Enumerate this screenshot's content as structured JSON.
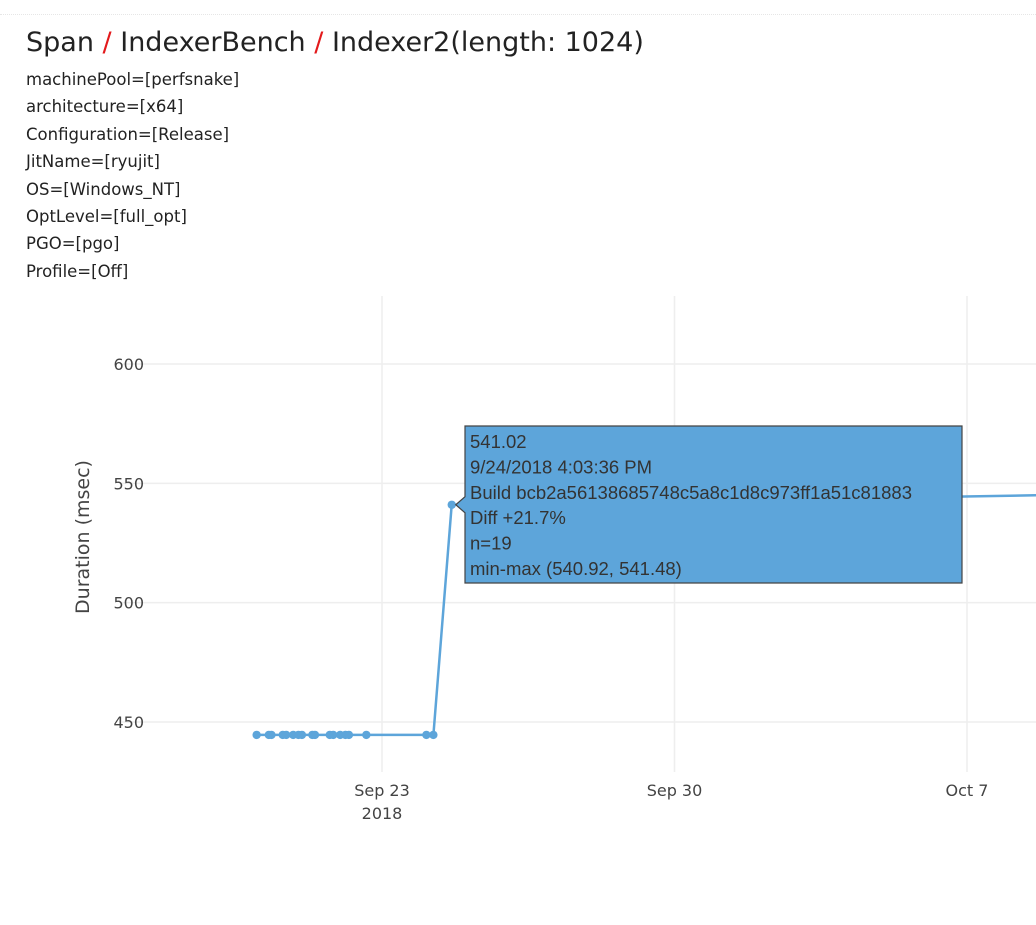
{
  "breadcrumb": {
    "items": [
      "Span",
      "IndexerBench",
      "Indexer2(length: 1024)"
    ],
    "separator": "/"
  },
  "metadata": [
    "machinePool=[perfsnake]",
    "architecture=[x64]",
    "Configuration=[Release]",
    "JitName=[ryujit]",
    "OS=[Windows_NT]",
    "OptLevel=[full_opt]",
    "PGO=[pgo]",
    "Profile=[Off]"
  ],
  "colors": {
    "series": "#5da5da",
    "tooltip_fill": "#5da5da",
    "tooltip_border": "#444444",
    "separator": "#e31a1c",
    "grid": "#eeeeee"
  },
  "chart_data": {
    "type": "line",
    "title": "",
    "ylabel": "Duration (msec)",
    "xlabel": "",
    "ylim": [
      422,
      623
    ],
    "xlim": [
      "2018-09-18T06:00:00",
      "2018-10-10T00:00:00"
    ],
    "yticks": [
      450,
      500,
      550,
      600
    ],
    "xticks": [
      {
        "date": "2018-09-23",
        "label": "Sep 23",
        "sublabel": "2018"
      },
      {
        "date": "2018-09-30",
        "label": "Sep 30",
        "sublabel": ""
      },
      {
        "date": "2018-10-07",
        "label": "Oct 7",
        "sublabel": ""
      }
    ],
    "grid": true,
    "series": [
      {
        "x": [
          "2018-09-20T00:00:00",
          "2018-09-20T07:00:00",
          "2018-09-20T08:30:00",
          "2018-09-20T15:00:00",
          "2018-09-20T17:00:00",
          "2018-09-20T21:00:00",
          "2018-09-21T00:00:00",
          "2018-09-21T02:00:00",
          "2018-09-21T08:00:00",
          "2018-09-21T09:30:00",
          "2018-09-21T18:00:00",
          "2018-09-21T20:00:00",
          "2018-09-22T00:00:00",
          "2018-09-22T03:00:00",
          "2018-09-22T05:00:00",
          "2018-09-22T15:00:00",
          "2018-09-24T01:30:00",
          "2018-09-24T05:30:00",
          "2018-09-24T16:03:36",
          "2018-10-10T00:00:00"
        ],
        "y": [
          444.6,
          444.6,
          444.6,
          444.6,
          444.6,
          444.6,
          444.6,
          444.6,
          444.6,
          444.6,
          444.6,
          444.6,
          444.6,
          444.6,
          444.6,
          444.6,
          444.6,
          444.6,
          541.02,
          545.0
        ]
      }
    ],
    "tooltip": {
      "lines": [
        "541.02",
        "9/24/2018 4:03:36 PM",
        "Build bcb2a56138685748c5a8c1d8c973ff1a51c81883",
        "Diff +21.7%",
        "n=19",
        "min-max (540.92, 541.48)"
      ],
      "point_index": 18
    }
  }
}
